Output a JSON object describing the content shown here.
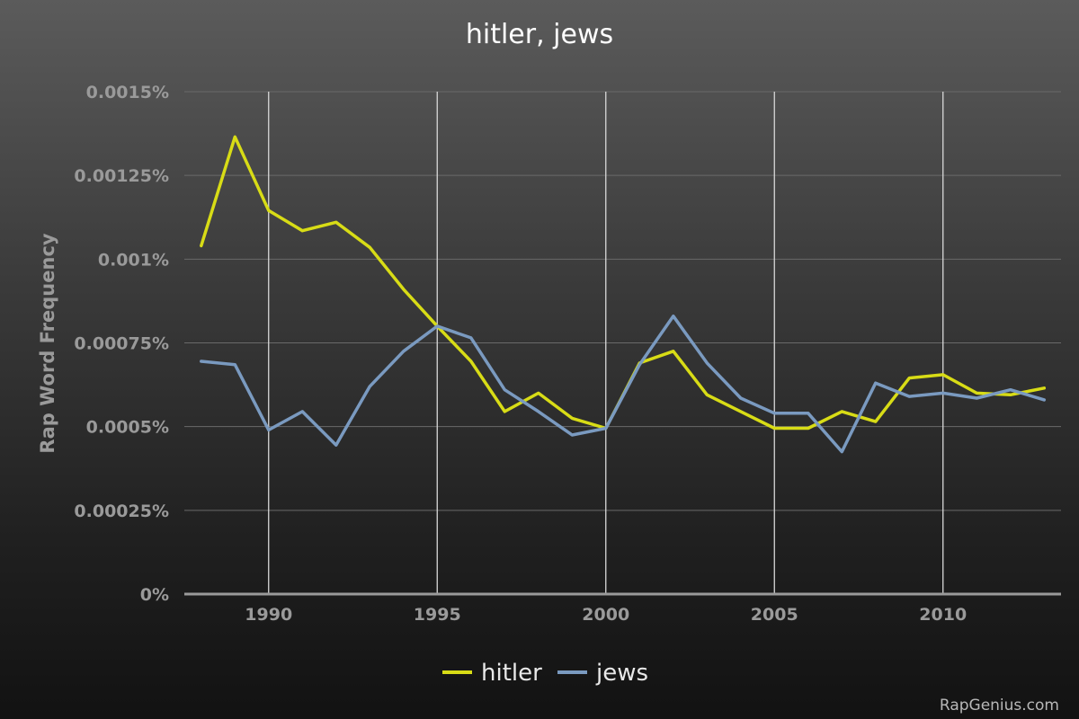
{
  "chart_data": {
    "type": "line",
    "title": "hitler, jews",
    "ylabel": "Rap Word Frequency",
    "xlabel": "",
    "xlim": [
      1987.5,
      2013.5
    ],
    "ylim": [
      0,
      0.0015
    ],
    "x_ticks": [
      1990,
      1995,
      2000,
      2005,
      2010
    ],
    "x_tick_labels": [
      "1990",
      "1995",
      "2000",
      "2005",
      "2010"
    ],
    "y_ticks": [
      0,
      0.00025,
      0.0005,
      0.00075,
      0.001,
      0.00125,
      0.0015
    ],
    "y_tick_labels": [
      "0%",
      "0.00025%",
      "0.0005%",
      "0.00075%",
      "0.001%",
      "0.00125%",
      "0.0015%"
    ],
    "grid": {
      "horizontal": true,
      "vertical": true
    },
    "legend_position": "bottom-center",
    "x": [
      1988,
      1989,
      1990,
      1991,
      1992,
      1993,
      1994,
      1995,
      1996,
      1997,
      1998,
      1999,
      2000,
      2001,
      2002,
      2003,
      2004,
      2005,
      2006,
      2007,
      2008,
      2009,
      2010,
      2011,
      2012,
      2013
    ],
    "series": [
      {
        "name": "hitler",
        "color": "#d8dc16",
        "values": [
          0.00104,
          0.001365,
          0.001145,
          0.001085,
          0.00111,
          0.001035,
          0.00091,
          0.0008,
          0.000695,
          0.000545,
          0.0006,
          0.000525,
          0.000495,
          0.00069,
          0.000725,
          0.000595,
          0.000545,
          0.000495,
          0.000495,
          0.000545,
          0.000515,
          0.000645,
          0.000655,
          0.0006,
          0.000595,
          0.000615
        ]
      },
      {
        "name": "jews",
        "color": "#7a9ac0",
        "values": [
          0.000695,
          0.000685,
          0.00049,
          0.000545,
          0.000445,
          0.00062,
          0.000725,
          0.0008,
          0.000765,
          0.00061,
          0.000545,
          0.000475,
          0.000495,
          0.000685,
          0.00083,
          0.00069,
          0.000585,
          0.00054,
          0.00054,
          0.000425,
          0.00063,
          0.00059,
          0.0006,
          0.000585,
          0.00061,
          0.00058
        ]
      }
    ]
  },
  "footer": {
    "credit": "RapGenius.com"
  }
}
